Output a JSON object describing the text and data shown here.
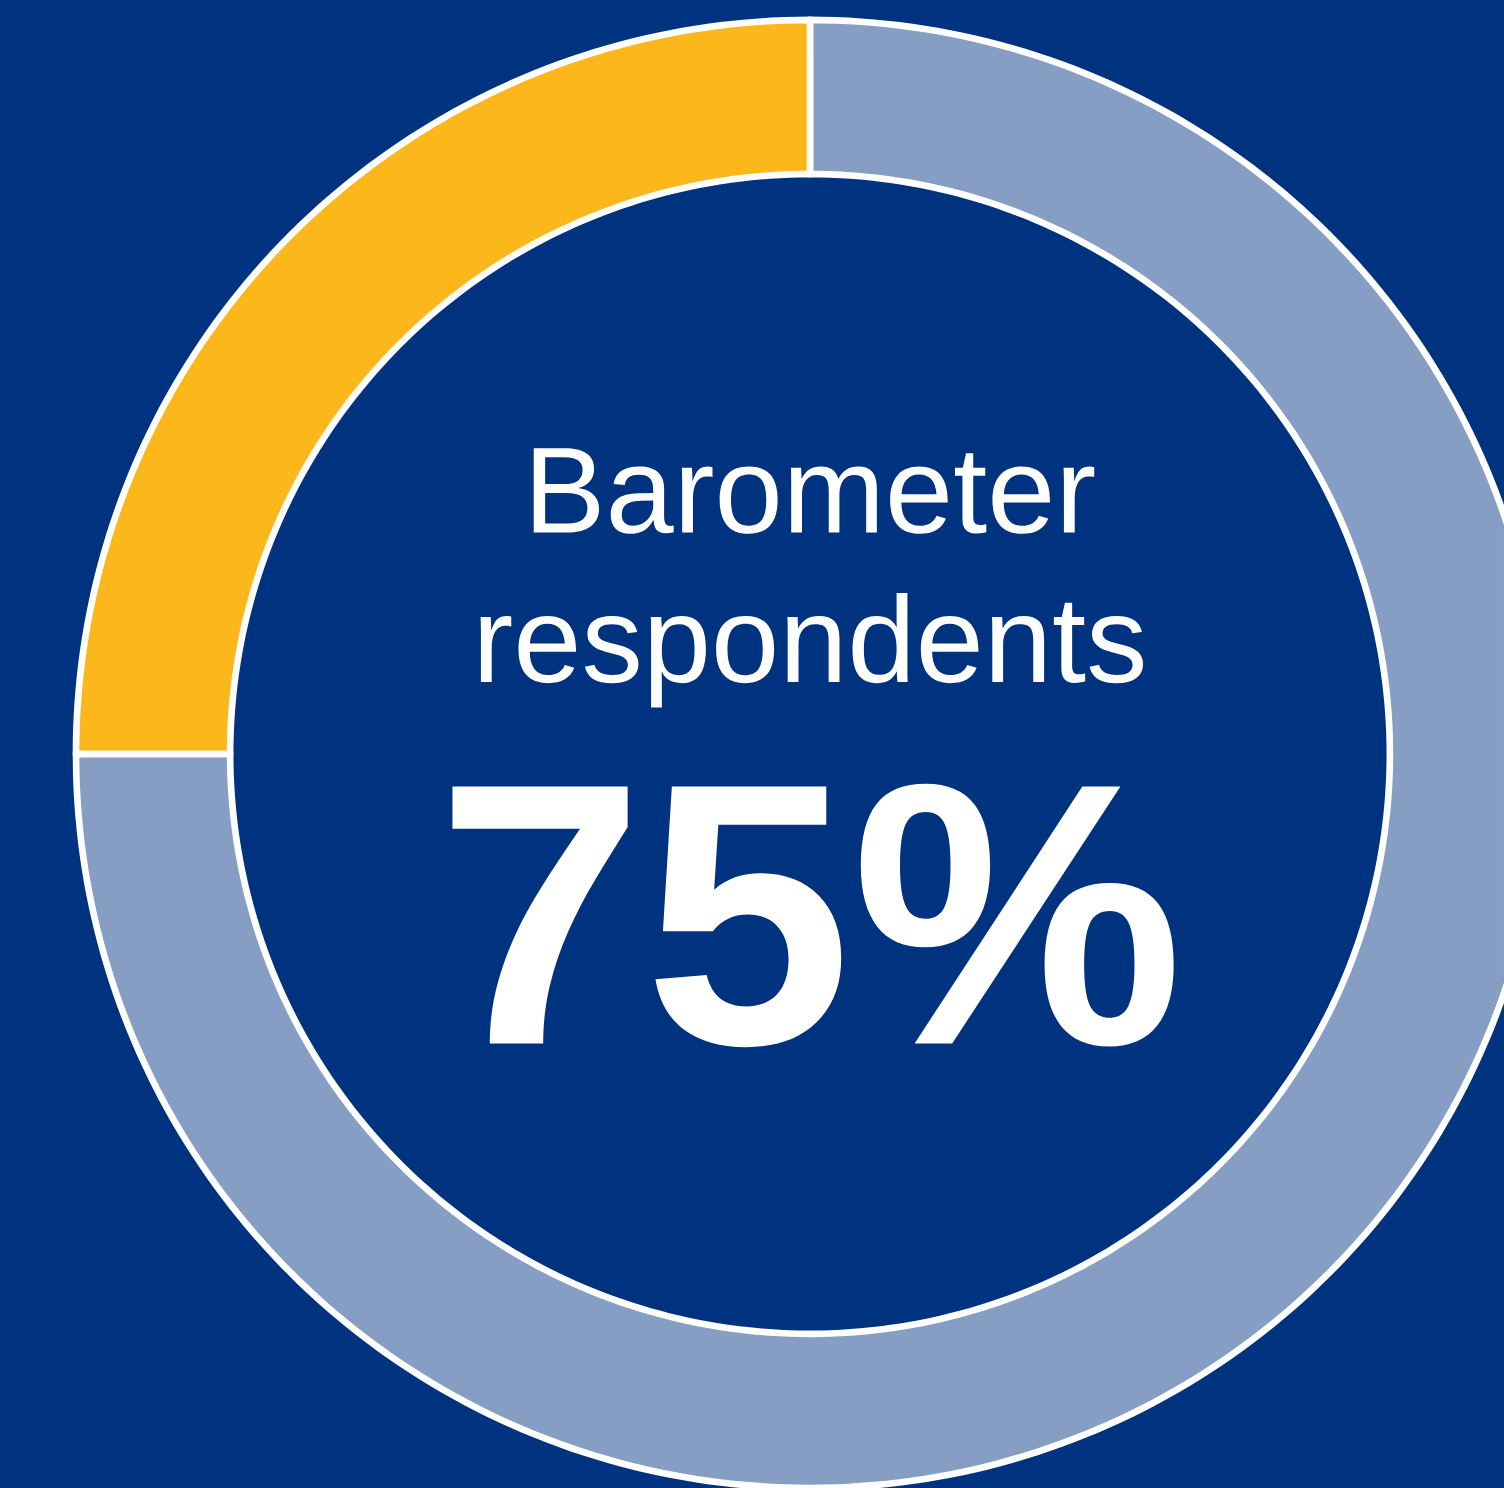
{
  "chart_data": {
    "type": "donut",
    "title": "Barometer respondents",
    "annotations": [
      "75%"
    ],
    "categories": [
      null,
      null
    ],
    "values": [
      75,
      25
    ],
    "colors": [
      "#869ec4",
      "#fcb71b"
    ]
  }
}
